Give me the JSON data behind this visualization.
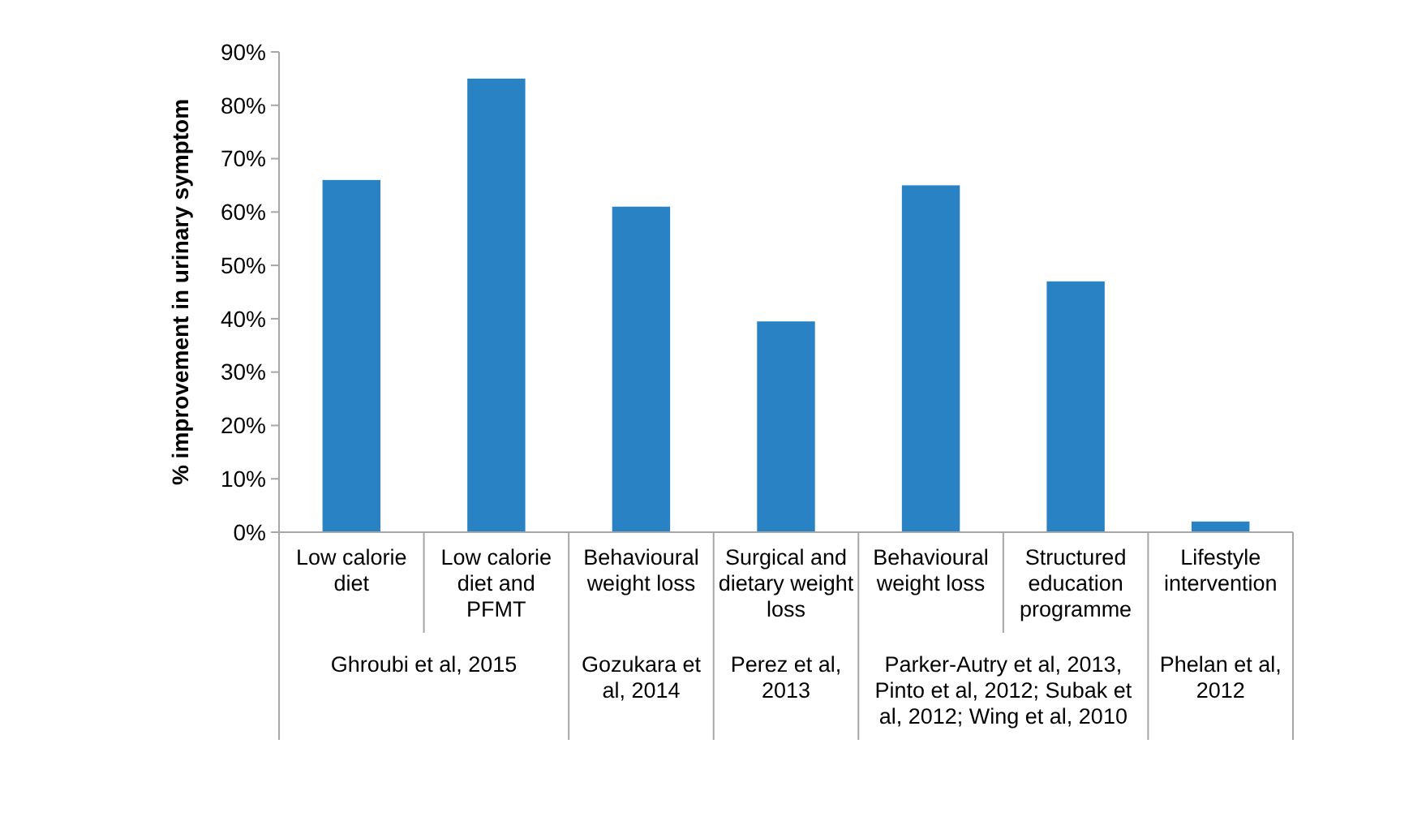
{
  "chart_data": {
    "type": "bar",
    "ylabel": "% improvement in urinary symptom",
    "categories": [
      "Low calorie diet",
      "Low calorie diet and PFMT",
      "Behavioural weight loss",
      "Surgical and dietary weight loss",
      "Behavioural weight loss",
      "Structured education programme",
      "Lifestyle intervention"
    ],
    "values": [
      66,
      85,
      61,
      39.5,
      65,
      47,
      2
    ],
    "color": "#2882c4",
    "ylim": [
      0,
      90
    ],
    "yticks": [
      {
        "value": 0,
        "label": "0%"
      },
      {
        "value": 10,
        "label": "10%"
      },
      {
        "value": 20,
        "label": "20%"
      },
      {
        "value": 30,
        "label": "30%"
      },
      {
        "value": 40,
        "label": "40%"
      },
      {
        "value": 50,
        "label": "50%"
      },
      {
        "value": 60,
        "label": "60%"
      },
      {
        "value": 70,
        "label": "70%"
      },
      {
        "value": 80,
        "label": "80%"
      },
      {
        "value": 90,
        "label": "90%"
      }
    ],
    "grid": false,
    "annotations": [
      "Ghroubi et al, 2015",
      "Gozukara et al, 2014",
      "Perez et al, 2013",
      "Parker-Autry et al, 2013, Pinto et al, 2012; Subak et al, 2012; Wing et al, 2010",
      "Phelan et al, 2012"
    ]
  }
}
